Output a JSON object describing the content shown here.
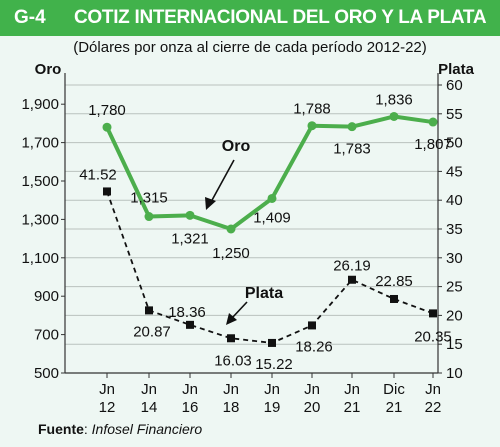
{
  "header": {
    "id": "G-4",
    "title": "COTIZ INTERNACIONAL DEL ORO Y LA PLATA"
  },
  "subtitle": "(Dólares por onza al cierre de cada período 2012-22)",
  "source": {
    "label": "Fuente",
    "name": "Infosel Financiero"
  },
  "colors": {
    "header": "#41b24b",
    "oro": "#4cae4c",
    "plata": "#111111",
    "background": "#eef7f3"
  },
  "chart_data": {
    "type": "line",
    "categories": [
      [
        "Jn",
        "12"
      ],
      [
        "Jn",
        "14"
      ],
      [
        "Jn",
        "16"
      ],
      [
        "Jn",
        "18"
      ],
      [
        "Jn",
        "19"
      ],
      [
        "Jn",
        "20"
      ],
      [
        "Jn",
        "21"
      ],
      [
        "Dic",
        "21"
      ],
      [
        "Jn",
        "22"
      ]
    ],
    "left_axis": {
      "title": "Oro",
      "ylim": [
        500,
        2000
      ],
      "ticks": [
        "500",
        "700",
        "900",
        "1,100",
        "1,300",
        "1,500",
        "1,700",
        "1,900"
      ],
      "tick_values": [
        500,
        700,
        900,
        1100,
        1300,
        1500,
        1700,
        1900
      ]
    },
    "right_axis": {
      "title": "Plata",
      "ylim": [
        10,
        60
      ],
      "ticks": [
        "10",
        "15",
        "20",
        "25",
        "30",
        "35",
        "40",
        "45",
        "50",
        "55",
        "60"
      ],
      "tick_values": [
        10,
        15,
        20,
        25,
        30,
        35,
        40,
        45,
        50,
        55,
        60
      ]
    },
    "grid": true,
    "series": [
      {
        "name": "Oro",
        "axis": "left",
        "values": [
          1780,
          1315,
          1321,
          1250,
          1409,
          1788,
          1783,
          1836,
          1807
        ],
        "labels": [
          "1,780",
          "1,315",
          "1,321",
          "1,250",
          "1,409",
          "1,788",
          "1,783",
          "1,836",
          "1,807"
        ],
        "style": "solid"
      },
      {
        "name": "Plata",
        "axis": "right",
        "values": [
          41.52,
          20.87,
          18.36,
          16.03,
          15.22,
          18.26,
          26.19,
          22.85,
          20.35
        ],
        "labels": [
          "41.52",
          "20.87",
          "18.36",
          "16.03",
          "15.22",
          "18.26",
          "26.19",
          "22.85",
          "20.35"
        ],
        "style": "dashed"
      }
    ]
  }
}
